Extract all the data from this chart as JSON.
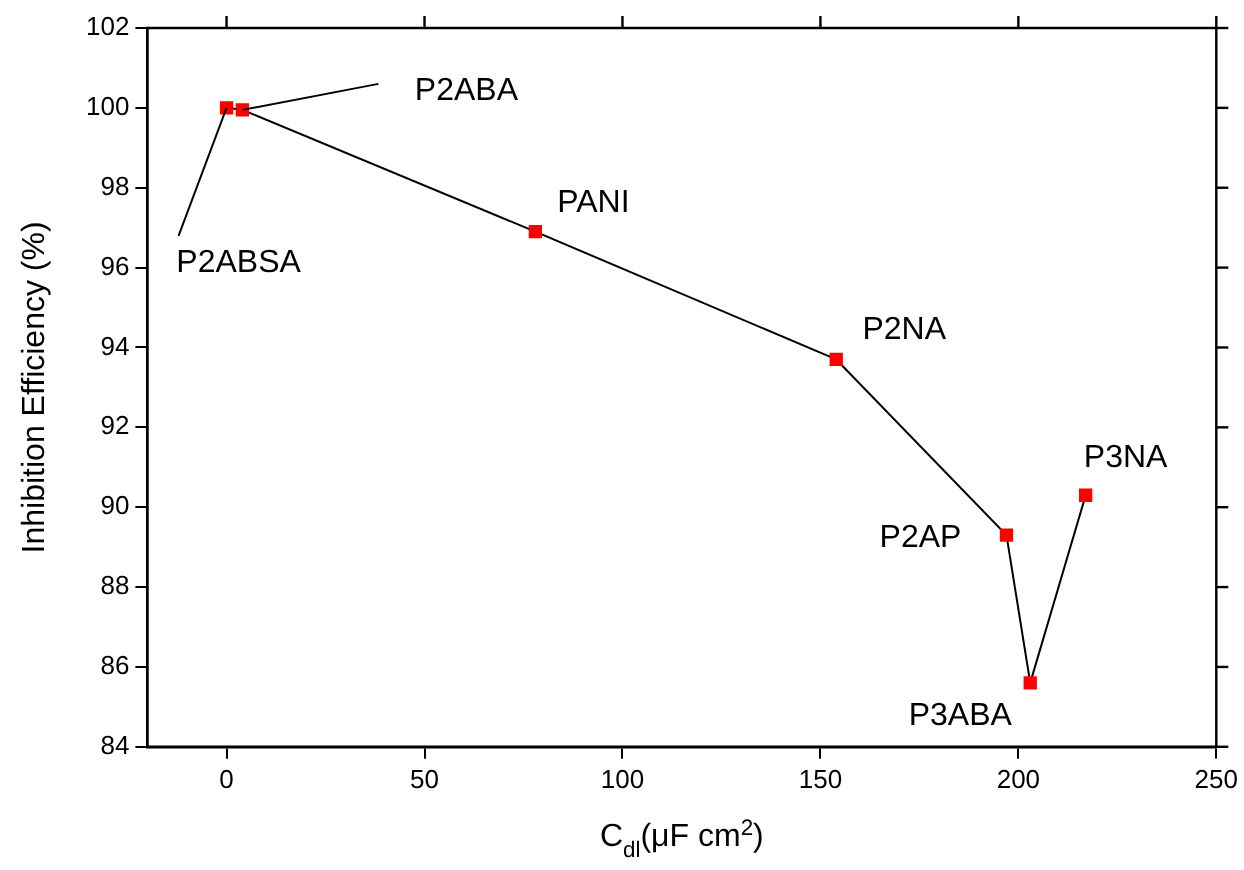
{
  "chart_data": {
    "type": "line",
    "xlabel": "C$_{dl}$(μF cm$^{2}$)",
    "ylabel": "Inhibition Efficiency (%)",
    "x": [
      0,
      4,
      78,
      154,
      197,
      203,
      217
    ],
    "series": [
      {
        "color": "#ff0000",
        "values": [
          100,
          99.95,
          96.9,
          93.7,
          89.3,
          85.6,
          90.3
        ]
      }
    ],
    "xlim": [
      -20,
      250
    ],
    "xticks": [
      0,
      50,
      100,
      150,
      200,
      250
    ],
    "ylim": [
      84,
      102
    ],
    "yticks": [
      84,
      86,
      88,
      90,
      92,
      94,
      96,
      98,
      100,
      102
    ],
    "marker": "square",
    "line_style": "solid",
    "grid": false,
    "legend": false,
    "annotations": [
      {
        "text": "P2ABSA",
        "x": 0,
        "y": 100
      },
      {
        "text": "P2ABA",
        "x": 4,
        "y": 99.95
      },
      {
        "text": "PANI",
        "x": 78,
        "y": 96.9
      },
      {
        "text": "P2NA",
        "x": 154,
        "y": 93.7
      },
      {
        "text": "P2AP",
        "x": 197,
        "y": 89.3
      },
      {
        "text": "P3ABA",
        "x": 203,
        "y": 85.6
      },
      {
        "text": "P3NA",
        "x": 217,
        "y": 90.3
      }
    ]
  }
}
